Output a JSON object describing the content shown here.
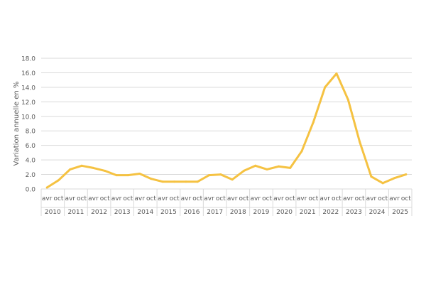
{
  "chart_data": {
    "type": "line",
    "title": "",
    "xlabel": "",
    "ylabel": "Variation annuelle en %",
    "ylim": [
      0,
      18
    ],
    "yticks": [
      "0.0",
      "2.0",
      "4.0",
      "6.0",
      "8.0",
      "10.0",
      "12.0",
      "14.0",
      "16.0",
      "18.0"
    ],
    "grid": true,
    "years": [
      "2010",
      "2011",
      "2012",
      "2013",
      "2014",
      "2015",
      "2016",
      "2017",
      "2018",
      "2019",
      "2020",
      "2021",
      "2022",
      "2023",
      "2024",
      "2025"
    ],
    "sub_labels": [
      "avr",
      "oct"
    ],
    "series": [
      {
        "name": "Variation annuelle",
        "color": "#f5c242",
        "values": [
          0.2,
          1.2,
          2.7,
          3.2,
          2.9,
          2.5,
          1.9,
          1.9,
          2.1,
          1.4,
          1.0,
          1.0,
          1.0,
          1.0,
          1.9,
          2.0,
          1.3,
          2.5,
          3.2,
          2.7,
          3.1,
          2.9,
          5.2,
          9.2,
          14.0,
          15.9,
          12.3,
          6.5,
          1.7,
          0.8,
          1.5,
          2.0
        ]
      }
    ]
  }
}
